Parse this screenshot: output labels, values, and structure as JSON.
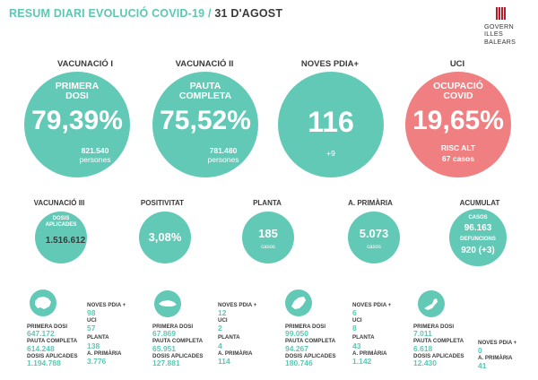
{
  "header": {
    "title_main": "RESUM DIARI EVOLUCIÓ COVID-19 /",
    "title_date": "31 D'AGOST"
  },
  "logo": {
    "line1": "GOVERN",
    "line2": "ILLES",
    "line3": "BALEARS",
    "icon": "bars-logo-icon"
  },
  "top": {
    "vac1": {
      "header": "VACUNACIÓ I",
      "label1": "PRIMERA",
      "label2": "DOSI",
      "value": "79,39%",
      "count": "821.540",
      "unit": "persones"
    },
    "vac2": {
      "header": "VACUNACIÓ II",
      "label1": "PAUTA",
      "label2": "COMPLETA",
      "value": "75,52%",
      "count": "781.480",
      "unit": "persones"
    },
    "pdia": {
      "header": "NOVES PDIA+",
      "value": "116",
      "delta": "+9"
    },
    "uci": {
      "header": "UCI",
      "label1": "OCUPACIÓ",
      "label2": "COVID",
      "value": "19,65%",
      "risk": "RISC ALT",
      "cases": "67 casos"
    }
  },
  "middle": {
    "vac3": {
      "header": "VACUNACIÓ III",
      "label1": "DOSIS",
      "label2": "APLICADES",
      "value": "1.516.612"
    },
    "pos": {
      "header": "POSITIVITAT",
      "value": "3,08%"
    },
    "planta": {
      "header": "PLANTA",
      "value": "185",
      "unit": "casos"
    },
    "aprim": {
      "header": "A. PRIMÀRIA",
      "value": "5.073",
      "unit": "casos"
    },
    "acum": {
      "header": "ACUMULAT",
      "label1": "CASOS",
      "value1": "96.163",
      "label2": "DEFUNCIONS",
      "value2": "920 (+3)"
    }
  },
  "islands": [
    {
      "icon": "mallorca-icon",
      "left": [
        {
          "label": "PRIMERA DOSI",
          "value": "647.172"
        },
        {
          "label": "PAUTA COMPLETA",
          "value": "614.248"
        },
        {
          "label": "DOSIS APLICADES",
          "value": "1.194.788"
        }
      ],
      "right": [
        {
          "label": "NOVES PDIA +",
          "value": "98"
        },
        {
          "label": "UCI",
          "value": "57"
        },
        {
          "label": "PLANTA",
          "value": "138"
        },
        {
          "label": "A. PRIMÀRIA",
          "value": "3.776"
        }
      ]
    },
    {
      "icon": "menorca-icon",
      "left": [
        {
          "label": "PRIMERA DOSI",
          "value": "67.869"
        },
        {
          "label": "PAUTA COMPLETA",
          "value": "65.951"
        },
        {
          "label": "DOSIS APLICADES",
          "value": "127.881"
        }
      ],
      "right": [
        {
          "label": "NOVES PDIA +",
          "value": "12"
        },
        {
          "label": "UCI",
          "value": "2"
        },
        {
          "label": "PLANTA",
          "value": "4"
        },
        {
          "label": "A. PRIMÀRIA",
          "value": "114"
        }
      ]
    },
    {
      "icon": "eivissa-icon",
      "left": [
        {
          "label": "PRIMERA DOSI",
          "value": "99.050"
        },
        {
          "label": "PAUTA COMPLETA",
          "value": "94.267"
        },
        {
          "label": "DOSIS APLICADES",
          "value": "180.746"
        }
      ],
      "right": [
        {
          "label": "NOVES PDIA +",
          "value": "6"
        },
        {
          "label": "UCI",
          "value": "8"
        },
        {
          "label": "PLANTA",
          "value": "43"
        },
        {
          "label": "A. PRIMÀRIA",
          "value": "1.142"
        }
      ]
    },
    {
      "icon": "formentera-icon",
      "left": [
        {
          "label": "PRIMERA DOSI",
          "value": "7.011"
        },
        {
          "label": "PAUTA COMPLETA",
          "value": "6.618"
        },
        {
          "label": "DOSIS APLICADES",
          "value": "12.430"
        }
      ],
      "right": [
        {
          "label": "NOVES PDIA +",
          "value": "0"
        },
        {
          "label": "A. PRIMÀRIA",
          "value": "41"
        }
      ]
    }
  ],
  "colors": {
    "teal": "#63c9b7",
    "red": "#ef7f81",
    "dark": "#3a3a3a",
    "logo_red": "#b71c2b"
  }
}
